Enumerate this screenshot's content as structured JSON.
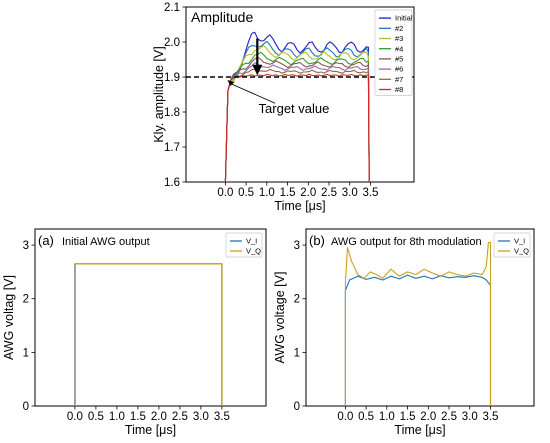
{
  "chart_data": [
    {
      "type": "line",
      "title": "Amplitude",
      "xlabel": "Time [μs]",
      "ylabel": "Kly. amplitude [V]",
      "xlim": [
        -0.95,
        4.55
      ],
      "ylim": [
        1.6,
        2.1
      ],
      "xticks": [
        "0.0",
        "0.5",
        "1.0",
        "1.5",
        "2.0",
        "2.5",
        "3.0",
        "3.5"
      ],
      "yticks": [
        "1.6",
        "1.7",
        "1.8",
        "1.9",
        "2.0",
        "2.1"
      ],
      "legend_position": "top-right",
      "target_value": 1.9,
      "annotation": "Target value",
      "series": [
        {
          "name": "Initial",
          "color": "#1f1fc8",
          "peak": 2.025,
          "flat": 1.985
        },
        {
          "name": "#2",
          "color": "#1f77b4",
          "peak": 2.0,
          "flat": 1.97
        },
        {
          "name": "#3",
          "color": "#bcbd22",
          "peak": 1.985,
          "flat": 1.96
        },
        {
          "name": "#4",
          "color": "#2ca02c",
          "peak": 1.965,
          "flat": 1.945
        },
        {
          "name": "#5",
          "color": "#8c564b",
          "peak": 1.95,
          "flat": 1.935
        },
        {
          "name": "#6",
          "color": "#9467bd",
          "peak": 1.935,
          "flat": 1.925
        },
        {
          "name": "#7",
          "color": "#8c6d31",
          "peak": 1.92,
          "flat": 1.915
        },
        {
          "name": "#8",
          "color": "#d62728",
          "peak": 1.905,
          "flat": 1.905
        }
      ]
    },
    {
      "type": "line",
      "title": "(a)",
      "subtitle": "Initial AWG output",
      "xlabel": "Time [μs]",
      "ylabel": "AWG voltag [V]",
      "xlim": [
        -0.95,
        4.55
      ],
      "ylim": [
        0,
        3.3
      ],
      "xticks": [
        "0.0",
        "0.5",
        "1.0",
        "1.5",
        "2.0",
        "2.5",
        "3.0",
        "3.5"
      ],
      "yticks": [
        "0",
        "1",
        "2",
        "3"
      ],
      "legend_position": "top-right",
      "series": [
        {
          "name": "V_I",
          "color": "#1f77b4",
          "level": 2.65
        },
        {
          "name": "V_Q",
          "color": "#c8a21e",
          "level": 2.65
        }
      ]
    },
    {
      "type": "line",
      "title": "(b)",
      "subtitle": "AWG output for 8th modulation",
      "xlabel": "Time [μs]",
      "ylabel": "AWG voltage [V]",
      "xlim": [
        -0.95,
        4.55
      ],
      "ylim": [
        0,
        3.3
      ],
      "xticks": [
        "0.0",
        "0.5",
        "1.0",
        "1.5",
        "2.0",
        "2.5",
        "3.0",
        "3.5"
      ],
      "yticks": [
        "0",
        "1",
        "2",
        "3"
      ],
      "legend_position": "top-right",
      "series": [
        {
          "name": "V_I",
          "color": "#1f77b4",
          "x": [
            0.0,
            0.1,
            0.3,
            0.5,
            0.7,
            0.9,
            1.1,
            1.3,
            1.5,
            1.7,
            1.9,
            2.1,
            2.3,
            2.5,
            2.7,
            2.9,
            3.1,
            3.3,
            3.4,
            3.5
          ],
          "y": [
            2.15,
            2.35,
            2.42,
            2.36,
            2.4,
            2.35,
            2.42,
            2.37,
            2.44,
            2.38,
            2.42,
            2.37,
            2.43,
            2.39,
            2.41,
            2.4,
            2.43,
            2.4,
            2.35,
            2.25
          ]
        },
        {
          "name": "V_Q",
          "color": "#c8a21e",
          "x": [
            0.0,
            0.05,
            0.15,
            0.3,
            0.45,
            0.6,
            0.75,
            0.9,
            1.1,
            1.3,
            1.5,
            1.7,
            1.9,
            2.1,
            2.3,
            2.5,
            2.7,
            2.9,
            3.1,
            3.3,
            3.4,
            3.45,
            3.5
          ],
          "y": [
            2.3,
            2.95,
            2.7,
            2.45,
            2.38,
            2.5,
            2.45,
            2.38,
            2.55,
            2.42,
            2.5,
            2.45,
            2.55,
            2.48,
            2.42,
            2.5,
            2.45,
            2.42,
            2.48,
            2.45,
            2.6,
            3.05,
            3.05
          ]
        }
      ]
    }
  ]
}
